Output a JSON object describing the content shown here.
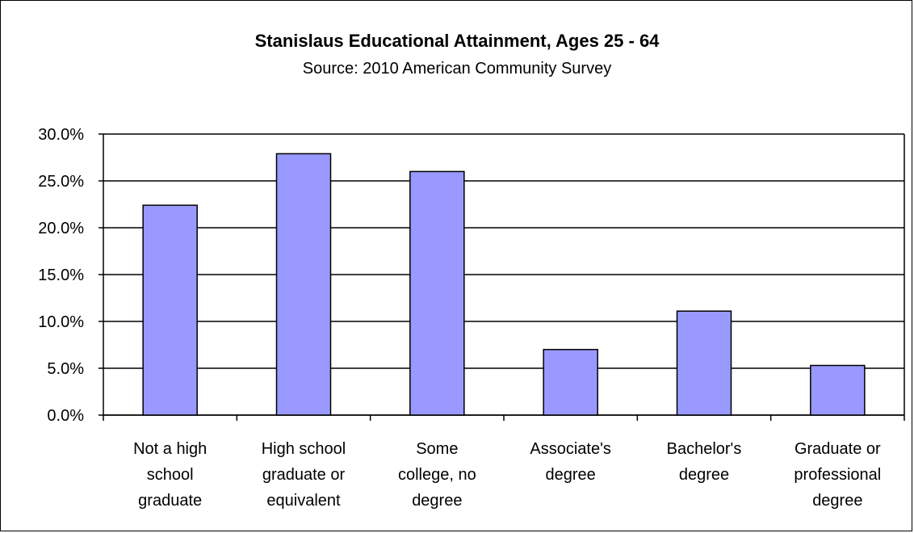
{
  "chart_data": {
    "type": "bar",
    "title": "Stanislaus Educational Attainment, Ages 25 - 64",
    "subtitle": "Source: 2010 American Community Survey",
    "xlabel": "",
    "ylabel": "",
    "categories": [
      [
        "Not a high",
        "school",
        "graduate"
      ],
      [
        "High school",
        "graduate or",
        "equivalent"
      ],
      [
        "Some",
        "college, no",
        "degree"
      ],
      [
        "Associate's",
        "degree"
      ],
      [
        "Bachelor's",
        "degree"
      ],
      [
        "Graduate or",
        "professional",
        "degree"
      ]
    ],
    "values": [
      22.4,
      27.9,
      26.0,
      7.0,
      11.1,
      5.3
    ],
    "ylim": [
      0,
      30
    ],
    "yticks": [
      0,
      5,
      10,
      15,
      20,
      25,
      30
    ],
    "ytick_labels": [
      "0.0%",
      "5.0%",
      "10.0%",
      "15.0%",
      "20.0%",
      "25.0%",
      "30.0%"
    ],
    "grid": true,
    "legend": "none",
    "bar_color": "#9999ff"
  }
}
